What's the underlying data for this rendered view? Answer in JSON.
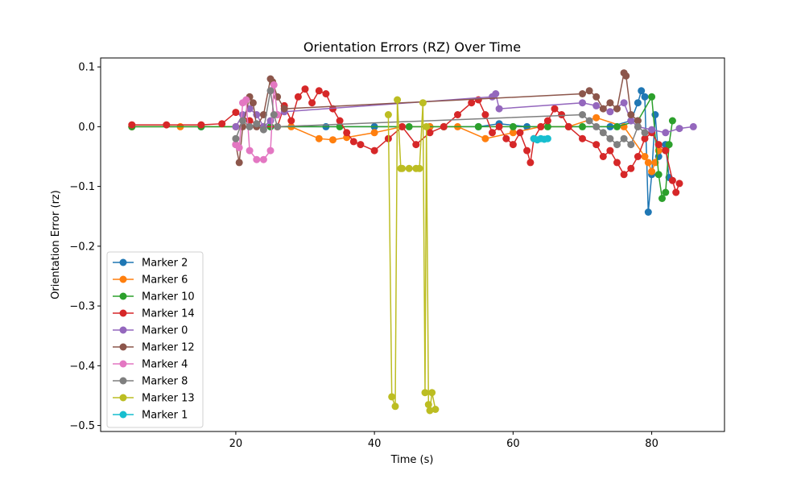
{
  "chart_data": {
    "type": "line",
    "title": "Orientation Errors (RZ) Over Time",
    "xlabel": "Time (s)",
    "ylabel": "Orientation Error (rz)",
    "xlim": [
      0.5,
      90.5
    ],
    "ylim": [
      -0.51,
      0.115
    ],
    "xticks": [
      20,
      40,
      60,
      80
    ],
    "yticks": [
      0.1,
      0.0,
      -0.1,
      -0.2,
      -0.3,
      -0.4,
      -0.5
    ],
    "ytick_labels": [
      "0.1",
      "0.0",
      "−0.1",
      "−0.2",
      "−0.3",
      "−0.4",
      "−0.5"
    ],
    "grid": false,
    "legend_position": "lower-left",
    "series": [
      {
        "name": "Marker 2",
        "color": "#1f77b4",
        "x": [
          5,
          15,
          25,
          33,
          40,
          48,
          55,
          58,
          62,
          68,
          74,
          77,
          78,
          78.5,
          79,
          79.5,
          80,
          80.5,
          81,
          82,
          82.5
        ],
        "y": [
          0.0,
          0.0,
          0.0,
          0.0,
          0.0,
          0.0,
          0.0,
          0.005,
          0.0,
          0.0,
          0.0,
          0.01,
          0.04,
          0.06,
          0.05,
          -0.143,
          -0.08,
          0.02,
          -0.05,
          -0.03,
          -0.085
        ]
      },
      {
        "name": "Marker 6",
        "color": "#ff7f0e",
        "x": [
          5,
          12,
          20,
          28,
          32,
          34,
          36,
          40,
          44,
          48,
          52,
          56,
          60,
          64,
          68,
          72,
          76,
          79,
          79.5,
          80,
          80.5,
          81
        ],
        "y": [
          0.0,
          0.0,
          0.0,
          0.0,
          -0.02,
          -0.022,
          -0.018,
          -0.01,
          0.0,
          0.0,
          0.0,
          -0.02,
          -0.01,
          0.0,
          0.0,
          0.015,
          0.0,
          -0.05,
          -0.06,
          -0.075,
          -0.06,
          -0.04
        ]
      },
      {
        "name": "Marker 10",
        "color": "#2ca02c",
        "x": [
          5,
          15,
          25,
          35,
          45,
          50,
          55,
          60,
          65,
          70,
          75,
          78,
          80,
          81,
          81.5,
          82,
          82.5,
          83
        ],
        "y": [
          0.0,
          0.0,
          0.0,
          0.0,
          0.0,
          0.0,
          0.0,
          0.0,
          0.0,
          0.0,
          0.0,
          0.01,
          0.05,
          -0.08,
          -0.12,
          -0.11,
          -0.03,
          0.01
        ]
      },
      {
        "name": "Marker 14",
        "color": "#d62728",
        "x": [
          5,
          10,
          15,
          18,
          20,
          22,
          24,
          26,
          27,
          28,
          29,
          30,
          31,
          32,
          33,
          34,
          35,
          36,
          37,
          38,
          40,
          42,
          44,
          46,
          48,
          50,
          52,
          54,
          55,
          56,
          57,
          58,
          59,
          60,
          61,
          62,
          62.5,
          63,
          64,
          65,
          66,
          67,
          68,
          70,
          72,
          73,
          74,
          75,
          76,
          77,
          78,
          79,
          80,
          81,
          82,
          83,
          83.5,
          84
        ],
        "y": [
          0.003,
          0.003,
          0.003,
          0.005,
          0.024,
          0.01,
          0.0,
          0.0,
          0.035,
          0.01,
          0.05,
          0.063,
          0.04,
          0.06,
          0.055,
          0.03,
          0.01,
          -0.01,
          -0.025,
          -0.03,
          -0.04,
          -0.02,
          0.0,
          -0.03,
          -0.01,
          0.0,
          0.02,
          0.04,
          0.045,
          0.02,
          -0.01,
          0.0,
          -0.02,
          -0.03,
          -0.01,
          -0.04,
          -0.06,
          -0.02,
          0.0,
          0.01,
          0.03,
          0.02,
          0.0,
          -0.02,
          -0.03,
          -0.05,
          -0.04,
          -0.06,
          -0.08,
          -0.07,
          -0.05,
          -0.02,
          -0.01,
          -0.03,
          -0.04,
          -0.09,
          -0.11,
          -0.095
        ]
      },
      {
        "name": "Marker 0",
        "color": "#9467bd",
        "x": [
          20,
          21,
          22,
          23,
          24,
          25,
          26,
          27,
          57,
          57.5,
          58,
          70,
          72,
          74,
          76,
          77,
          78,
          80,
          82,
          84,
          86
        ],
        "y": [
          0.0,
          0.02,
          0.03,
          0.02,
          0.0,
          0.01,
          0.02,
          0.025,
          0.05,
          0.055,
          0.03,
          0.04,
          0.035,
          0.025,
          0.04,
          0.01,
          0.0,
          -0.005,
          -0.01,
          -0.003,
          0.0
        ]
      },
      {
        "name": "Marker 12",
        "color": "#8c564b",
        "x": [
          20,
          20.5,
          21,
          22,
          22.5,
          23,
          24,
          25,
          25.3,
          26,
          27,
          70,
          71,
          72,
          73,
          74,
          75,
          76,
          76.3,
          77,
          78
        ],
        "y": [
          -0.03,
          -0.06,
          0.0,
          0.05,
          0.04,
          0.0,
          0.02,
          0.08,
          0.075,
          0.05,
          0.03,
          0.055,
          0.06,
          0.05,
          0.03,
          0.04,
          0.03,
          0.09,
          0.085,
          0.02,
          0.01
        ]
      },
      {
        "name": "Marker 4",
        "color": "#e377c2",
        "x": [
          20,
          20.5,
          21,
          21.5,
          22,
          23,
          24,
          25,
          25.5,
          26
        ],
        "y": [
          -0.03,
          -0.035,
          0.04,
          0.045,
          -0.04,
          -0.055,
          -0.055,
          -0.04,
          0.07,
          0.02
        ]
      },
      {
        "name": "Marker 8",
        "color": "#7f7f7f",
        "x": [
          20,
          21,
          22,
          23,
          24,
          25,
          25.5,
          26,
          70,
          71,
          72,
          73,
          74,
          75,
          76,
          77,
          78,
          79
        ],
        "y": [
          -0.02,
          0.01,
          0.0,
          0.005,
          -0.005,
          0.06,
          0.02,
          0.0,
          0.02,
          0.01,
          0.0,
          -0.01,
          -0.02,
          -0.03,
          -0.02,
          -0.03,
          0.0,
          -0.01
        ]
      },
      {
        "name": "Marker 13",
        "color": "#bcbd22",
        "x": [
          42,
          42.5,
          43,
          43.3,
          43.8,
          44,
          45,
          46,
          46.5,
          47,
          47.3,
          47.5,
          47.8,
          48,
          48.3,
          48.8
        ],
        "y": [
          0.02,
          -0.452,
          -0.468,
          0.045,
          -0.07,
          -0.07,
          -0.07,
          -0.07,
          -0.07,
          0.04,
          -0.445,
          0.0,
          -0.465,
          -0.475,
          -0.445,
          -0.473
        ]
      },
      {
        "name": "Marker 1",
        "color": "#17becf",
        "x": [
          63,
          63.5,
          64,
          64.5,
          65
        ],
        "y": [
          -0.02,
          -0.022,
          -0.02,
          -0.021,
          -0.02
        ]
      }
    ]
  }
}
